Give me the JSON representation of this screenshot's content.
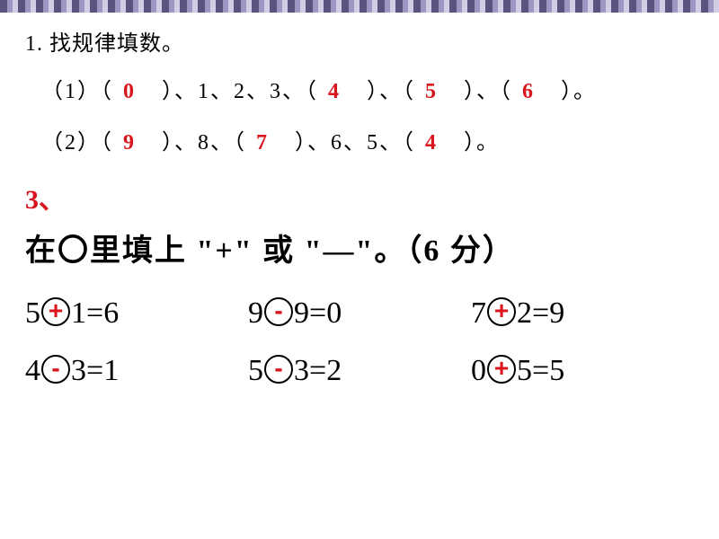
{
  "colors": {
    "answer": "#d8141c",
    "text": "#000000",
    "background": "#ffffff",
    "border_pattern": [
      "#3a3668",
      "#8a86b8",
      "#c8c6e0"
    ]
  },
  "fonts": {
    "body_size_pt": 24,
    "q3_title_size_pt": 34,
    "eq_size_pt": 34
  },
  "q1": {
    "number": "1.",
    "title": "找规律填数。",
    "rows": [
      {
        "label": "（1）",
        "items": [
          {
            "type": "blank",
            "ans": "0"
          },
          {
            "type": "sep"
          },
          {
            "type": "num",
            "v": "1"
          },
          {
            "type": "sep"
          },
          {
            "type": "num",
            "v": "2"
          },
          {
            "type": "sep"
          },
          {
            "type": "num",
            "v": "3"
          },
          {
            "type": "sep"
          },
          {
            "type": "blank",
            "ans": "4"
          },
          {
            "type": "sep"
          },
          {
            "type": "blank",
            "ans": "5"
          },
          {
            "type": "sep"
          },
          {
            "type": "blank",
            "ans": "6"
          },
          {
            "type": "end"
          }
        ]
      },
      {
        "label": "（2）",
        "items": [
          {
            "type": "blank",
            "ans": "9"
          },
          {
            "type": "sep"
          },
          {
            "type": "num",
            "v": "8"
          },
          {
            "type": "sep"
          },
          {
            "type": "blank",
            "ans": "7"
          },
          {
            "type": "sep"
          },
          {
            "type": "num",
            "v": "6"
          },
          {
            "type": "sep"
          },
          {
            "type": "num",
            "v": "5"
          },
          {
            "type": "sep"
          },
          {
            "type": "blank",
            "ans": "4"
          },
          {
            "type": "end"
          }
        ]
      }
    ]
  },
  "q3": {
    "label": "3、",
    "title_parts": [
      "在〇里填上 \"",
      "+",
      "\" 或 \"",
      "—",
      "\"。（",
      "6 分",
      "）"
    ],
    "equations": [
      {
        "a": "5",
        "op": "+",
        "b": "1",
        "eq": "=",
        "r": "6"
      },
      {
        "a": "9",
        "op": "-",
        "b": "9",
        "eq": "=",
        "r": "0"
      },
      {
        "a": "7",
        "op": "+",
        "b": "2",
        "eq": "=",
        "r": "9"
      },
      {
        "a": "4",
        "op": "-",
        "b": "3",
        "eq": "=",
        "r": "1"
      },
      {
        "a": "5",
        "op": "-",
        "b": "3",
        "eq": "=",
        "r": "2"
      },
      {
        "a": "0",
        "op": "+",
        "b": "5",
        "eq": "=",
        "r": "5"
      }
    ]
  }
}
